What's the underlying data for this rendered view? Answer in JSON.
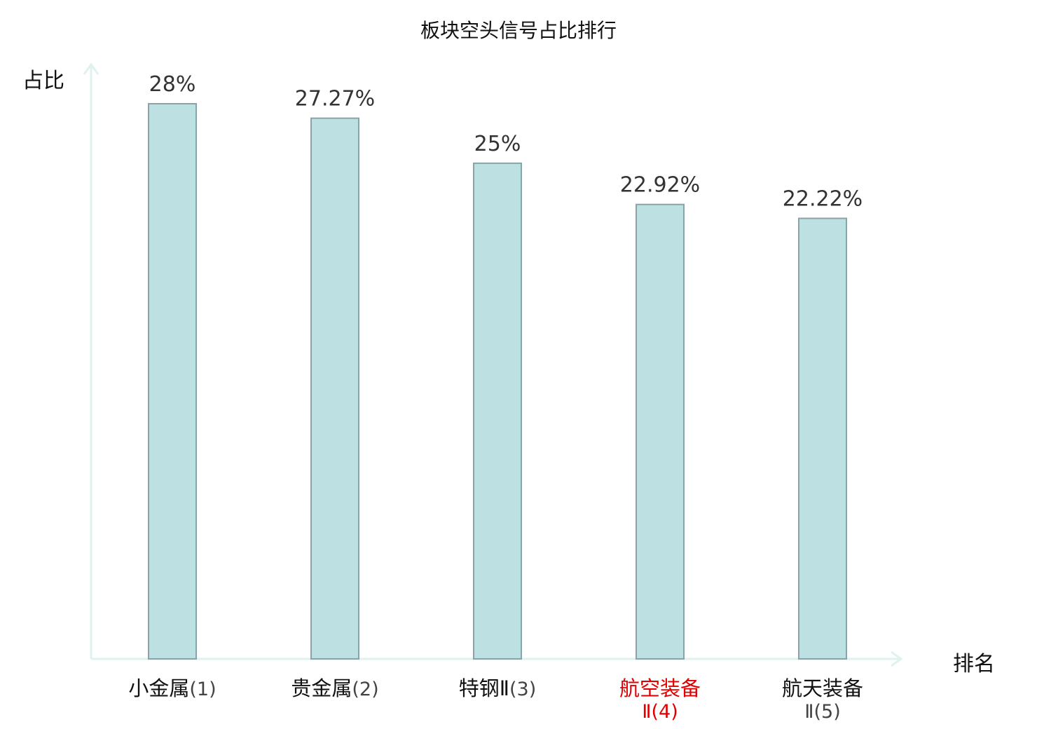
{
  "colors": {
    "bar_fill": "#bde1e3",
    "bar_stroke": "#8aa3a6",
    "axis": "#dff2ef",
    "highlight": "#e00000"
  },
  "chart_data": {
    "type": "bar",
    "title": "板块空头信号占比排行",
    "ylabel": "占比",
    "xlabel": "排名",
    "ylim": [
      0,
      30
    ],
    "grid": false,
    "categories": [
      {
        "name": "小金属",
        "rank": "(1)",
        "highlight": false
      },
      {
        "name": "贵金属",
        "rank": "(2)",
        "highlight": false
      },
      {
        "name": "特钢Ⅱ",
        "rank": "(3)",
        "highlight": false
      },
      {
        "name": "航空装备",
        "rank": "Ⅱ(4)",
        "highlight": true
      },
      {
        "name": "航天装备",
        "rank": "Ⅱ(5)",
        "highlight": false
      }
    ],
    "values": [
      28,
      27.27,
      25,
      22.92,
      22.22
    ],
    "value_labels": [
      "28%",
      "27.27%",
      "25%",
      "22.92%",
      "22.22%"
    ]
  }
}
